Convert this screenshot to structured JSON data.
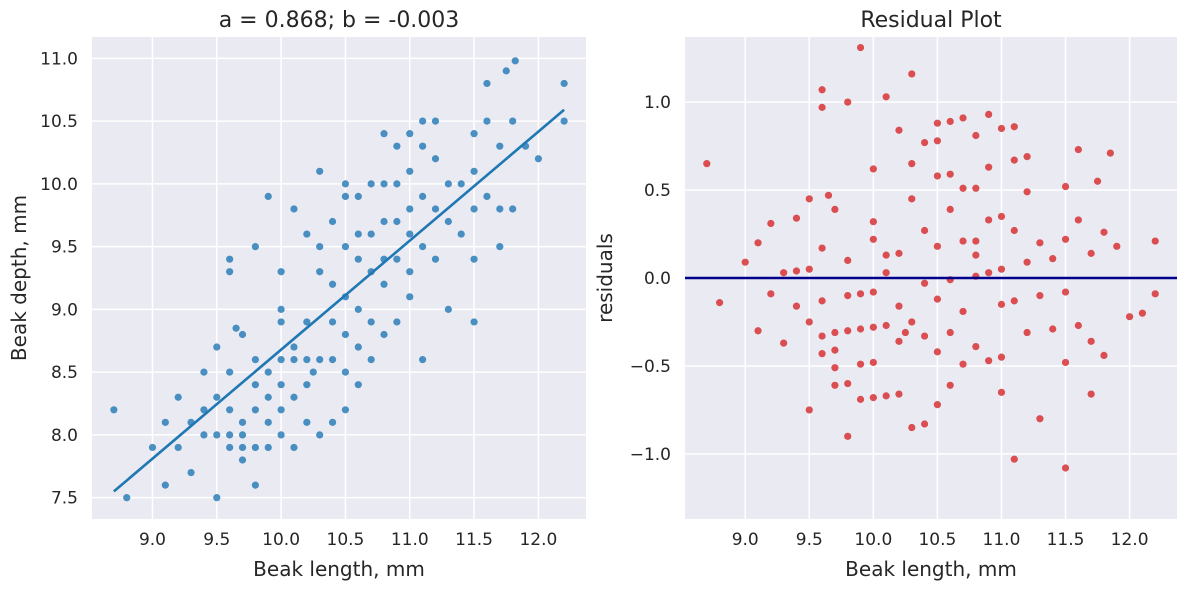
{
  "chart_data": [
    {
      "type": "scatter",
      "title": "a = 0.868; b = -0.003",
      "xlabel": "Beak length, mm",
      "ylabel": "Beak depth, mm",
      "xlim": [
        8.53,
        12.37
      ],
      "ylim": [
        7.33,
        11.17
      ],
      "xticks": [
        9.0,
        9.5,
        10.0,
        10.5,
        11.0,
        11.5,
        12.0
      ],
      "xtick_labels": [
        "9.0",
        "9.5",
        "10.0",
        "10.5",
        "11.0",
        "11.5",
        "12.0"
      ],
      "yticks": [
        7.5,
        8.0,
        8.5,
        9.0,
        9.5,
        10.0,
        10.5,
        11.0
      ],
      "ytick_labels": [
        "7.5",
        "8.0",
        "8.5",
        "9.0",
        "9.5",
        "10.0",
        "10.5",
        "11.0"
      ],
      "grid": true,
      "point_color": "#1f77b4",
      "fit_line": {
        "x": [
          8.7,
          12.2
        ],
        "y": [
          7.55,
          10.59
        ],
        "color": "#1f77b4"
      },
      "points": [
        [
          8.7,
          8.2
        ],
        [
          8.8,
          7.5
        ],
        [
          9.0,
          7.9
        ],
        [
          9.1,
          8.1
        ],
        [
          9.1,
          7.6
        ],
        [
          9.2,
          7.9
        ],
        [
          9.2,
          8.3
        ],
        [
          9.3,
          7.7
        ],
        [
          9.3,
          8.1
        ],
        [
          9.4,
          8.0
        ],
        [
          9.4,
          8.2
        ],
        [
          9.4,
          8.5
        ],
        [
          9.5,
          7.5
        ],
        [
          9.5,
          8.0
        ],
        [
          9.5,
          8.3
        ],
        [
          9.5,
          8.7
        ],
        [
          9.6,
          7.9
        ],
        [
          9.6,
          8.0
        ],
        [
          9.6,
          8.2
        ],
        [
          9.6,
          8.5
        ],
        [
          9.6,
          9.3
        ],
        [
          9.6,
          9.4
        ],
        [
          9.65,
          8.85
        ],
        [
          9.7,
          7.8
        ],
        [
          9.7,
          7.9
        ],
        [
          9.7,
          8.0
        ],
        [
          9.7,
          8.1
        ],
        [
          9.7,
          8.8
        ],
        [
          9.8,
          7.6
        ],
        [
          9.8,
          7.9
        ],
        [
          9.8,
          8.2
        ],
        [
          9.8,
          8.4
        ],
        [
          9.8,
          8.6
        ],
        [
          9.8,
          9.5
        ],
        [
          9.9,
          7.9
        ],
        [
          9.9,
          8.1
        ],
        [
          9.9,
          8.3
        ],
        [
          9.9,
          8.5
        ],
        [
          9.9,
          9.9
        ],
        [
          10.0,
          8.0
        ],
        [
          10.0,
          8.2
        ],
        [
          10.0,
          8.4
        ],
        [
          10.0,
          8.6
        ],
        [
          10.0,
          8.9
        ],
        [
          10.0,
          9.0
        ],
        [
          10.0,
          9.3
        ],
        [
          10.1,
          7.9
        ],
        [
          10.1,
          8.3
        ],
        [
          10.1,
          8.6
        ],
        [
          10.1,
          8.7
        ],
        [
          10.1,
          9.8
        ],
        [
          10.2,
          8.1
        ],
        [
          10.2,
          8.4
        ],
        [
          10.2,
          8.6
        ],
        [
          10.2,
          8.9
        ],
        [
          10.2,
          9.6
        ],
        [
          10.25,
          8.5
        ],
        [
          10.3,
          8.0
        ],
        [
          10.3,
          8.6
        ],
        [
          10.3,
          9.3
        ],
        [
          10.3,
          9.5
        ],
        [
          10.3,
          10.1
        ],
        [
          10.4,
          8.1
        ],
        [
          10.4,
          8.6
        ],
        [
          10.4,
          8.9
        ],
        [
          10.4,
          9.2
        ],
        [
          10.4,
          9.7
        ],
        [
          10.5,
          8.2
        ],
        [
          10.5,
          8.5
        ],
        [
          10.5,
          8.8
        ],
        [
          10.5,
          9.1
        ],
        [
          10.5,
          9.5
        ],
        [
          10.5,
          9.9
        ],
        [
          10.5,
          10.0
        ],
        [
          10.6,
          8.4
        ],
        [
          10.6,
          8.7
        ],
        [
          10.6,
          9.0
        ],
        [
          10.6,
          9.4
        ],
        [
          10.6,
          9.6
        ],
        [
          10.6,
          9.9
        ],
        [
          10.7,
          8.6
        ],
        [
          10.7,
          8.9
        ],
        [
          10.7,
          9.3
        ],
        [
          10.7,
          9.6
        ],
        [
          10.7,
          10.0
        ],
        [
          10.8,
          8.8
        ],
        [
          10.8,
          9.2
        ],
        [
          10.8,
          9.4
        ],
        [
          10.8,
          9.7
        ],
        [
          10.8,
          10.0
        ],
        [
          10.8,
          10.4
        ],
        [
          10.9,
          8.9
        ],
        [
          10.9,
          9.4
        ],
        [
          10.9,
          9.7
        ],
        [
          10.9,
          10.0
        ],
        [
          10.9,
          10.3
        ],
        [
          11.0,
          9.1
        ],
        [
          11.0,
          9.3
        ],
        [
          11.0,
          9.6
        ],
        [
          11.0,
          9.8
        ],
        [
          11.0,
          10.1
        ],
        [
          11.0,
          10.4
        ],
        [
          11.1,
          8.6
        ],
        [
          11.1,
          9.5
        ],
        [
          11.1,
          9.9
        ],
        [
          11.1,
          10.3
        ],
        [
          11.1,
          10.5
        ],
        [
          11.2,
          9.4
        ],
        [
          11.2,
          9.8
        ],
        [
          11.2,
          10.2
        ],
        [
          11.2,
          10.5
        ],
        [
          11.3,
          9.0
        ],
        [
          11.3,
          9.7
        ],
        [
          11.3,
          10.0
        ],
        [
          11.4,
          9.6
        ],
        [
          11.4,
          10.0
        ],
        [
          11.5,
          8.9
        ],
        [
          11.5,
          9.4
        ],
        [
          11.5,
          9.8
        ],
        [
          11.5,
          10.1
        ],
        [
          11.5,
          10.4
        ],
        [
          11.6,
          9.9
        ],
        [
          11.6,
          10.5
        ],
        [
          11.6,
          10.8
        ],
        [
          11.7,
          9.5
        ],
        [
          11.7,
          9.8
        ],
        [
          11.7,
          10.3
        ],
        [
          11.75,
          10.9
        ],
        [
          11.8,
          9.8
        ],
        [
          11.8,
          10.5
        ],
        [
          11.82,
          10.98
        ],
        [
          11.9,
          10.3
        ],
        [
          12.0,
          10.2
        ],
        [
          12.2,
          10.8
        ],
        [
          12.2,
          10.5
        ]
      ]
    },
    {
      "type": "scatter",
      "title": "Residual Plot",
      "xlabel": "Beak length, mm",
      "ylabel": "residuals",
      "xlim": [
        8.53,
        12.37
      ],
      "ylim": [
        -1.37,
        1.37
      ],
      "xticks": [
        9.0,
        9.5,
        10.0,
        10.5,
        11.0,
        11.5,
        12.0
      ],
      "xtick_labels": [
        "9.0",
        "9.5",
        "10.0",
        "10.5",
        "11.0",
        "11.5",
        "12.0"
      ],
      "yticks": [
        -1.0,
        -0.5,
        0.0,
        0.5,
        1.0
      ],
      "ytick_labels": [
        "−1.0",
        "−0.5",
        "0.0",
        "0.5",
        "1.0"
      ],
      "grid": true,
      "point_color": "#d62728",
      "zero_line": {
        "y": 0.0,
        "color": "#00008b"
      },
      "points": [
        [
          8.7,
          0.65
        ],
        [
          8.8,
          -0.14
        ],
        [
          9.0,
          0.09
        ],
        [
          9.1,
          0.2
        ],
        [
          9.1,
          -0.3
        ],
        [
          9.2,
          -0.09
        ],
        [
          9.2,
          0.31
        ],
        [
          9.3,
          -0.37
        ],
        [
          9.3,
          0.03
        ],
        [
          9.4,
          -0.16
        ],
        [
          9.4,
          0.04
        ],
        [
          9.4,
          0.34
        ],
        [
          9.5,
          -0.75
        ],
        [
          9.5,
          -0.25
        ],
        [
          9.5,
          0.05
        ],
        [
          9.5,
          0.45
        ],
        [
          9.6,
          -0.43
        ],
        [
          9.6,
          -0.33
        ],
        [
          9.6,
          -0.13
        ],
        [
          9.6,
          0.17
        ],
        [
          9.6,
          0.97
        ],
        [
          9.6,
          1.07
        ],
        [
          9.65,
          0.47
        ],
        [
          9.7,
          -0.61
        ],
        [
          9.7,
          -0.51
        ],
        [
          9.7,
          -0.41
        ],
        [
          9.7,
          -0.31
        ],
        [
          9.7,
          0.39
        ],
        [
          9.8,
          -0.9
        ],
        [
          9.8,
          -0.6
        ],
        [
          9.8,
          -0.3
        ],
        [
          9.8,
          -0.1
        ],
        [
          9.8,
          0.1
        ],
        [
          9.8,
          1.0
        ],
        [
          9.9,
          -0.69
        ],
        [
          9.9,
          -0.49
        ],
        [
          9.9,
          -0.29
        ],
        [
          9.9,
          -0.09
        ],
        [
          9.9,
          1.31
        ],
        [
          10.0,
          -0.68
        ],
        [
          10.0,
          -0.48
        ],
        [
          10.0,
          -0.28
        ],
        [
          10.0,
          -0.08
        ],
        [
          10.0,
          0.22
        ],
        [
          10.0,
          0.32
        ],
        [
          10.0,
          0.62
        ],
        [
          10.1,
          -0.67
        ],
        [
          10.1,
          -0.27
        ],
        [
          10.1,
          0.03
        ],
        [
          10.1,
          0.13
        ],
        [
          10.1,
          1.03
        ],
        [
          10.2,
          -0.66
        ],
        [
          10.2,
          -0.36
        ],
        [
          10.2,
          -0.16
        ],
        [
          10.2,
          0.14
        ],
        [
          10.2,
          0.84
        ],
        [
          10.25,
          -0.31
        ],
        [
          10.3,
          -0.85
        ],
        [
          10.3,
          -0.25
        ],
        [
          10.3,
          0.45
        ],
        [
          10.3,
          0.65
        ],
        [
          10.3,
          1.16
        ],
        [
          10.4,
          -0.83
        ],
        [
          10.4,
          -0.33
        ],
        [
          10.4,
          -0.03
        ],
        [
          10.4,
          0.27
        ],
        [
          10.4,
          0.77
        ],
        [
          10.5,
          -0.72
        ],
        [
          10.5,
          -0.42
        ],
        [
          10.5,
          -0.12
        ],
        [
          10.5,
          0.18
        ],
        [
          10.5,
          0.58
        ],
        [
          10.5,
          0.88
        ],
        [
          10.5,
          0.78
        ],
        [
          10.6,
          -0.61
        ],
        [
          10.6,
          -0.31
        ],
        [
          10.6,
          -0.01
        ],
        [
          10.6,
          0.39
        ],
        [
          10.6,
          0.59
        ],
        [
          10.6,
          0.89
        ],
        [
          10.7,
          -0.49
        ],
        [
          10.7,
          -0.19
        ],
        [
          10.7,
          0.21
        ],
        [
          10.7,
          0.51
        ],
        [
          10.7,
          0.91
        ],
        [
          10.8,
          -0.39
        ],
        [
          10.8,
          0.01
        ],
        [
          10.8,
          0.21
        ],
        [
          10.8,
          0.51
        ],
        [
          10.8,
          0.81
        ],
        [
          10.8,
          0.13
        ],
        [
          10.9,
          -0.47
        ],
        [
          10.9,
          0.03
        ],
        [
          10.9,
          0.33
        ],
        [
          10.9,
          0.63
        ],
        [
          10.9,
          0.93
        ],
        [
          11.0,
          -0.65
        ],
        [
          11.0,
          -0.45
        ],
        [
          11.0,
          -0.15
        ],
        [
          11.0,
          0.05
        ],
        [
          11.0,
          0.35
        ],
        [
          11.0,
          0.85
        ],
        [
          11.1,
          -1.03
        ],
        [
          11.1,
          -0.13
        ],
        [
          11.1,
          0.27
        ],
        [
          11.1,
          0.67
        ],
        [
          11.1,
          0.86
        ],
        [
          11.2,
          -0.31
        ],
        [
          11.2,
          0.09
        ],
        [
          11.2,
          0.49
        ],
        [
          11.2,
          0.69
        ],
        [
          11.3,
          -0.8
        ],
        [
          11.3,
          -0.1
        ],
        [
          11.3,
          0.2
        ],
        [
          11.4,
          -0.29
        ],
        [
          11.4,
          0.11
        ],
        [
          11.5,
          -1.08
        ],
        [
          11.5,
          -0.48
        ],
        [
          11.5,
          -0.08
        ],
        [
          11.5,
          0.22
        ],
        [
          11.5,
          0.52
        ],
        [
          11.6,
          -0.27
        ],
        [
          11.6,
          0.33
        ],
        [
          11.6,
          0.73
        ],
        [
          11.7,
          -0.66
        ],
        [
          11.7,
          -0.36
        ],
        [
          11.7,
          0.14
        ],
        [
          11.75,
          0.55
        ],
        [
          11.8,
          -0.44
        ],
        [
          11.8,
          0.26
        ],
        [
          11.85,
          0.71
        ],
        [
          11.9,
          0.18
        ],
        [
          12.0,
          -0.22
        ],
        [
          12.1,
          -0.2
        ],
        [
          12.2,
          0.21
        ],
        [
          12.2,
          -0.09
        ]
      ]
    }
  ]
}
